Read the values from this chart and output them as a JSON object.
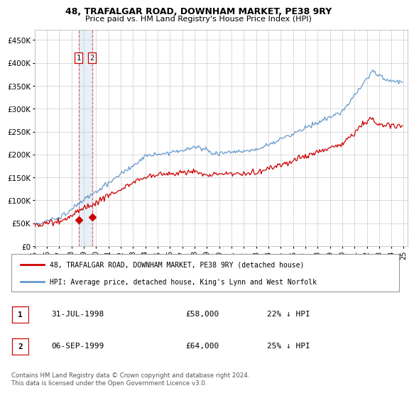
{
  "title": "48, TRAFALGAR ROAD, DOWNHAM MARKET, PE38 9RY",
  "subtitle": "Price paid vs. HM Land Registry's House Price Index (HPI)",
  "legend_label_red": "48, TRAFALGAR ROAD, DOWNHAM MARKET, PE38 9RY (detached house)",
  "legend_label_blue": "HPI: Average price, detached house, King's Lynn and West Norfolk",
  "footer": "Contains HM Land Registry data © Crown copyright and database right 2024.\nThis data is licensed under the Open Government Licence v3.0.",
  "transactions": [
    {
      "num": "1",
      "date": "31-JUL-1998",
      "price": "£58,000",
      "hpi": "22% ↓ HPI"
    },
    {
      "num": "2",
      "date": "06-SEP-1999",
      "price": "£64,000",
      "hpi": "25% ↓ HPI"
    }
  ],
  "marker1_x": 1998.58,
  "marker2_x": 1999.68,
  "marker1_y": 58000,
  "marker2_y": 64000,
  "xlim": [
    1995.0,
    2025.3
  ],
  "ylim": [
    0,
    472500
  ],
  "yticks": [
    0,
    50000,
    100000,
    150000,
    200000,
    250000,
    300000,
    350000,
    400000,
    450000
  ],
  "ytick_labels": [
    "£0",
    "£50K",
    "£100K",
    "£150K",
    "£200K",
    "£250K",
    "£300K",
    "£350K",
    "£400K",
    "£450K"
  ],
  "xtick_years": [
    1995,
    1996,
    1997,
    1998,
    1999,
    2000,
    2001,
    2002,
    2003,
    2004,
    2005,
    2006,
    2007,
    2008,
    2009,
    2010,
    2011,
    2012,
    2013,
    2014,
    2015,
    2016,
    2017,
    2018,
    2019,
    2020,
    2021,
    2022,
    2023,
    2024,
    2025
  ],
  "red_color": "#cc0000",
  "blue_color": "#6699cc",
  "grid_color": "#cccccc",
  "bg_color": "#ffffff"
}
